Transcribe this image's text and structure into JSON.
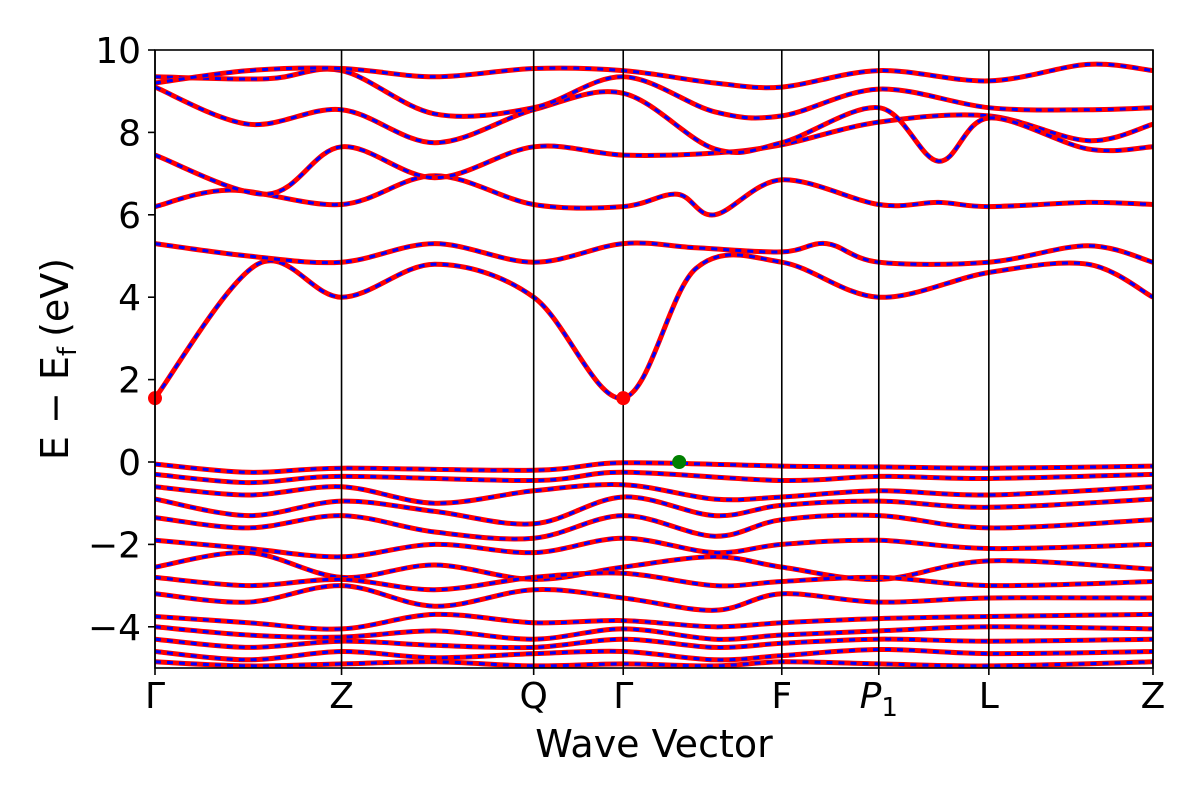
{
  "chart_data": {
    "type": "line",
    "xlabel": "Wave Vector",
    "ylabel_main": "E − E",
    "ylabel_sub": "f",
    "ylabel_unit": "(eV)",
    "ylim": [
      -5,
      10
    ],
    "yticks": [
      -4,
      -2,
      0,
      2,
      4,
      6,
      8,
      10
    ],
    "ytick_labels": [
      "−4",
      "−2",
      "0",
      "2",
      "4",
      "6",
      "8",
      "10"
    ],
    "xlim": [
      0,
      5.35
    ],
    "kpoints": [
      {
        "label": "Γ",
        "x": 0.0
      },
      {
        "label": "Z",
        "x": 1.0
      },
      {
        "label": "Q",
        "x": 2.03
      },
      {
        "label": "Γ",
        "x": 2.51
      },
      {
        "label": "F",
        "x": 3.36
      },
      {
        "label": "P",
        "sub": "1",
        "x": 3.88
      },
      {
        "label": "L",
        "x": 4.47
      },
      {
        "label": "Z",
        "x": 5.35
      }
    ],
    "series_styles": [
      {
        "color": "#ff0000",
        "style": "solid"
      },
      {
        "color": "#0000ff",
        "style": "dashed"
      }
    ],
    "markers": [
      {
        "x": 0.0,
        "y": 1.55,
        "color": "#ff0000"
      },
      {
        "x": 2.51,
        "y": 1.55,
        "color": "#ff0000"
      },
      {
        "x": 2.81,
        "y": 0.0,
        "color": "#008000"
      }
    ],
    "bands": [
      {
        "x": [
          0,
          0.55,
          1.0,
          1.5,
          2.03,
          2.51,
          2.9,
          3.36,
          3.88,
          4.47,
          5.0,
          5.35
        ],
        "y": [
          1.55,
          4.8,
          4.0,
          4.8,
          4.0,
          1.55,
          4.7,
          4.85,
          4.0,
          4.6,
          4.8,
          4.0
        ]
      },
      {
        "x": [
          0,
          0.5,
          1.0,
          1.5,
          2.03,
          2.51,
          2.9,
          3.36,
          3.6,
          3.88,
          4.47,
          5.0,
          5.35
        ],
        "y": [
          5.3,
          5.0,
          4.85,
          5.3,
          4.85,
          5.3,
          5.2,
          5.1,
          5.3,
          4.85,
          4.85,
          5.25,
          4.85
        ]
      },
      {
        "x": [
          0,
          0.4,
          1.0,
          1.5,
          2.03,
          2.51,
          2.8,
          3.0,
          3.36,
          3.88,
          4.2,
          4.47,
          5.0,
          5.35
        ],
        "y": [
          6.2,
          6.6,
          6.25,
          6.95,
          6.25,
          6.2,
          6.5,
          6.0,
          6.85,
          6.25,
          6.3,
          6.2,
          6.3,
          6.25
        ]
      },
      {
        "x": [
          0,
          0.6,
          1.0,
          1.5,
          2.03,
          2.51,
          3.0,
          3.36,
          3.88,
          4.47,
          5.0,
          5.35
        ],
        "y": [
          7.45,
          6.5,
          7.65,
          6.9,
          7.65,
          7.45,
          7.5,
          7.7,
          8.25,
          8.4,
          7.8,
          8.2
        ]
      },
      {
        "x": [
          0,
          0.5,
          1.0,
          1.5,
          2.03,
          2.51,
          3.0,
          3.36,
          3.88,
          4.2,
          4.47,
          5.0,
          5.35
        ],
        "y": [
          9.1,
          8.2,
          8.55,
          7.75,
          8.55,
          8.95,
          7.6,
          7.75,
          8.6,
          7.3,
          8.35,
          7.6,
          7.65
        ]
      },
      {
        "x": [
          0,
          0.6,
          1.0,
          1.5,
          2.03,
          2.51,
          3.0,
          3.36,
          3.88,
          4.47,
          5.0,
          5.35
        ],
        "y": [
          9.35,
          9.3,
          9.5,
          8.45,
          8.6,
          9.35,
          8.5,
          8.4,
          9.05,
          8.6,
          8.55,
          8.6
        ]
      },
      {
        "x": [
          0,
          0.5,
          1.0,
          1.5,
          2.03,
          2.51,
          3.0,
          3.36,
          3.88,
          4.47,
          5.0,
          5.35
        ],
        "y": [
          9.2,
          9.5,
          9.55,
          9.35,
          9.55,
          9.5,
          9.2,
          9.1,
          9.5,
          9.25,
          9.65,
          9.5
        ]
      },
      {
        "x": [
          0,
          0.5,
          1.0,
          2.03,
          2.51,
          3.36,
          3.88,
          4.47,
          5.35
        ],
        "y": [
          -0.05,
          -0.25,
          -0.15,
          -0.2,
          -0.02,
          -0.1,
          -0.12,
          -0.15,
          -0.1
        ]
      },
      {
        "x": [
          0,
          0.5,
          1.0,
          2.03,
          2.51,
          3.36,
          3.88,
          4.47,
          5.35
        ],
        "y": [
          -0.3,
          -0.5,
          -0.35,
          -0.45,
          -0.25,
          -0.45,
          -0.35,
          -0.4,
          -0.3
        ]
      },
      {
        "x": [
          0,
          0.5,
          1.0,
          1.5,
          2.03,
          2.51,
          3.0,
          3.36,
          3.88,
          4.47,
          5.35
        ],
        "y": [
          -0.6,
          -0.8,
          -0.6,
          -1.0,
          -0.7,
          -0.55,
          -0.9,
          -0.85,
          -0.7,
          -0.8,
          -0.6
        ]
      },
      {
        "x": [
          0,
          0.5,
          1.0,
          1.5,
          2.03,
          2.51,
          3.0,
          3.36,
          3.88,
          4.47,
          5.35
        ],
        "y": [
          -0.9,
          -1.3,
          -0.95,
          -1.2,
          -1.5,
          -0.85,
          -1.3,
          -1.05,
          -0.95,
          -1.1,
          -0.9
        ]
      },
      {
        "x": [
          0,
          0.5,
          1.0,
          1.5,
          2.03,
          2.51,
          3.0,
          3.36,
          3.88,
          4.47,
          5.35
        ],
        "y": [
          -1.35,
          -1.6,
          -1.3,
          -1.7,
          -1.85,
          -1.3,
          -1.8,
          -1.4,
          -1.3,
          -1.6,
          -1.4
        ]
      },
      {
        "x": [
          0,
          0.5,
          1.0,
          1.5,
          2.03,
          2.51,
          3.0,
          3.36,
          3.88,
          4.47,
          5.35
        ],
        "y": [
          -1.9,
          -2.1,
          -2.3,
          -2.0,
          -2.2,
          -1.85,
          -2.2,
          -2.0,
          -1.9,
          -2.1,
          -2.0
        ]
      },
      {
        "x": [
          0,
          0.5,
          1.0,
          1.5,
          2.03,
          2.51,
          3.0,
          3.36,
          3.88,
          4.47,
          5.35
        ],
        "y": [
          -2.55,
          -2.2,
          -2.8,
          -2.5,
          -2.85,
          -2.55,
          -2.3,
          -2.55,
          -2.85,
          -2.4,
          -2.6
        ]
      },
      {
        "x": [
          0,
          0.5,
          1.0,
          1.5,
          2.03,
          2.51,
          3.0,
          3.36,
          3.88,
          4.47,
          5.35
        ],
        "y": [
          -2.8,
          -3.0,
          -2.85,
          -3.1,
          -2.8,
          -2.7,
          -3.0,
          -2.9,
          -2.8,
          -3.0,
          -2.9
        ]
      },
      {
        "x": [
          0,
          0.5,
          1.0,
          1.5,
          2.03,
          2.51,
          3.0,
          3.36,
          3.88,
          4.47,
          5.35
        ],
        "y": [
          -3.2,
          -3.4,
          -3.0,
          -3.5,
          -3.1,
          -3.3,
          -3.6,
          -3.2,
          -3.4,
          -3.3,
          -3.3
        ]
      },
      {
        "x": [
          0,
          0.5,
          1.0,
          1.5,
          2.03,
          2.51,
          3.0,
          3.36,
          3.88,
          4.47,
          5.35
        ],
        "y": [
          -3.75,
          -3.9,
          -4.05,
          -3.7,
          -3.9,
          -3.85,
          -4.0,
          -3.9,
          -3.8,
          -3.75,
          -3.7
        ]
      },
      {
        "x": [
          0,
          0.5,
          1.0,
          1.5,
          2.03,
          2.51,
          3.0,
          3.36,
          3.88,
          4.47,
          5.35
        ],
        "y": [
          -4.0,
          -4.2,
          -4.25,
          -4.1,
          -4.3,
          -4.05,
          -4.3,
          -4.2,
          -4.1,
          -4.0,
          -4.05
        ]
      },
      {
        "x": [
          0,
          0.5,
          1.0,
          1.5,
          2.03,
          2.51,
          3.0,
          3.36,
          3.88,
          4.47,
          5.35
        ],
        "y": [
          -4.3,
          -4.5,
          -4.35,
          -4.45,
          -4.5,
          -4.3,
          -4.5,
          -4.4,
          -4.3,
          -4.35,
          -4.3
        ]
      },
      {
        "x": [
          0,
          0.5,
          1.0,
          1.5,
          2.03,
          2.51,
          3.0,
          3.36,
          3.88,
          4.47,
          5.35
        ],
        "y": [
          -4.6,
          -4.8,
          -4.6,
          -4.75,
          -4.65,
          -4.6,
          -4.8,
          -4.7,
          -4.55,
          -4.65,
          -4.6
        ]
      },
      {
        "x": [
          0,
          0.5,
          1.0,
          1.5,
          2.03,
          2.51,
          3.0,
          3.36,
          3.88,
          4.47,
          5.35
        ],
        "y": [
          -4.85,
          -4.95,
          -4.9,
          -4.85,
          -4.95,
          -4.9,
          -4.95,
          -4.85,
          -4.9,
          -4.95,
          -4.85
        ]
      }
    ]
  }
}
